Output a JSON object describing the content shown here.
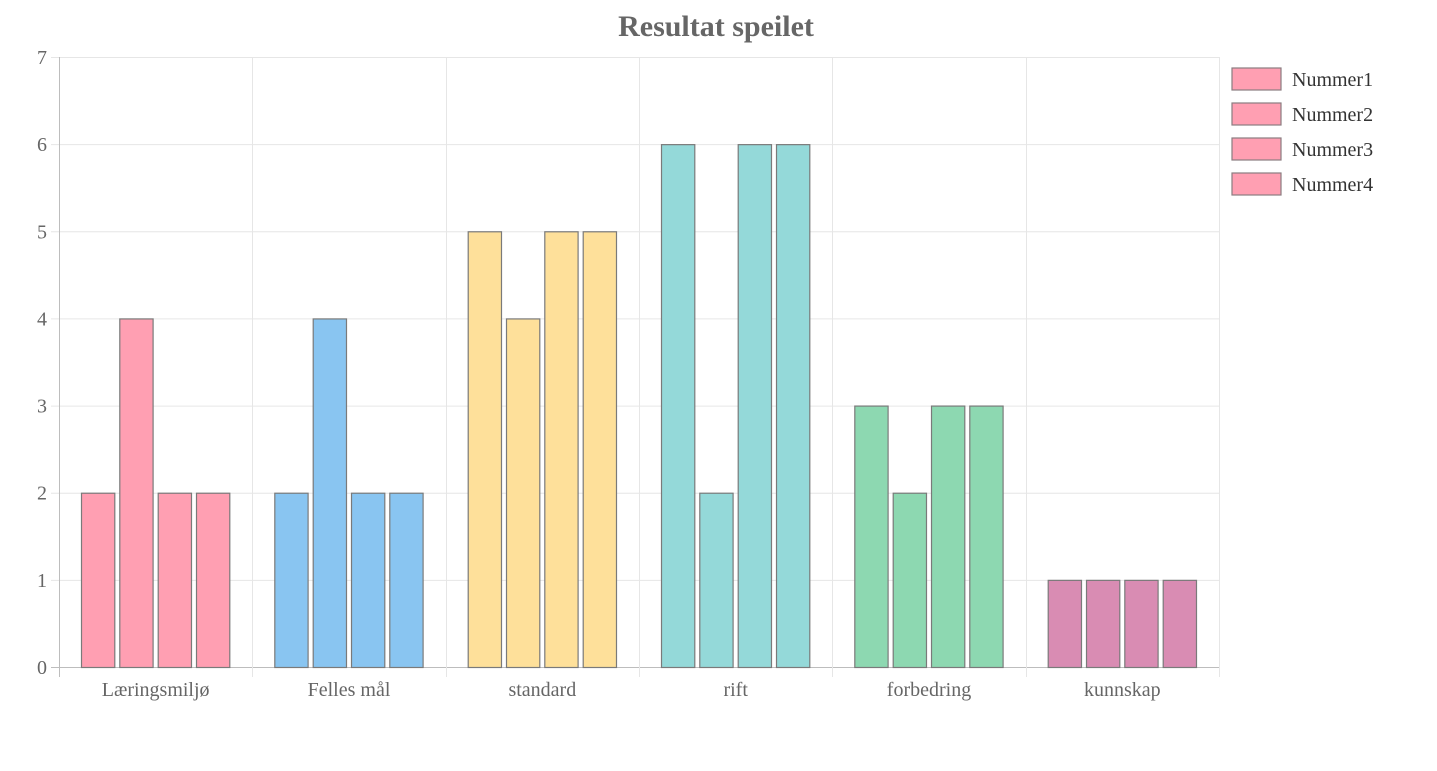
{
  "chart_data": {
    "type": "bar",
    "title": "Resultat speilet",
    "categories": [
      "Læringsmiljø",
      "Felles mål",
      "standard",
      "rift",
      "forbedring",
      "kunnskap"
    ],
    "series": [
      {
        "name": "Nummer1",
        "values": [
          2,
          2,
          5,
          6,
          3,
          1
        ]
      },
      {
        "name": "Nummer2",
        "values": [
          4,
          4,
          4,
          2,
          2,
          1
        ]
      },
      {
        "name": "Nummer3",
        "values": [
          2,
          2,
          5,
          6,
          3,
          1
        ]
      },
      {
        "name": "Nummer4",
        "values": [
          2,
          2,
          5,
          6,
          3,
          1
        ]
      }
    ],
    "ylim": [
      0,
      7
    ],
    "yticks": [
      "0",
      "1",
      "2",
      "3",
      "4",
      "5",
      "6",
      "7"
    ],
    "grid": true,
    "legend_position": "right",
    "category_colors": [
      "#ff9fb2",
      "#89c5f1",
      "#fee09a",
      "#94d9d9",
      "#8dd8b1",
      "#d98cb3"
    ],
    "legend_color": "#ff9fb2"
  }
}
